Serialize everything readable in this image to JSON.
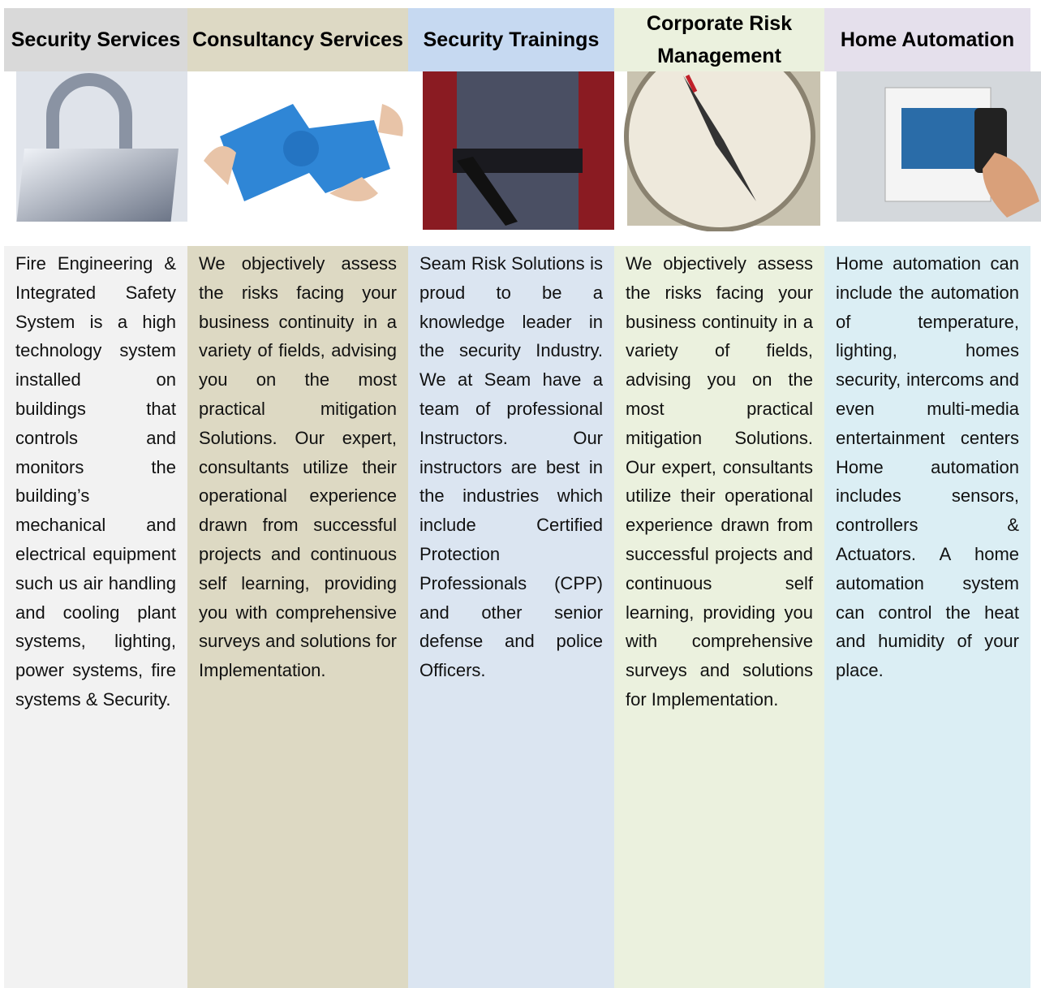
{
  "columns": [
    {
      "title": "Security Services",
      "text": "Fire Engineering & Integrated Safety System is a high technology system installed on buildings that controls and monitors the building’s mechanical and electrical equipment such us air handling and cooling plant systems, lighting, power systems, fire systems & Security."
    },
    {
      "title": "Consultancy Services",
      "text": "We objectively assess the risks facing your business continuity in a variety of fields, advising you on the most practical mitigation Solutions. Our expert, consultants utilize their operational experience drawn from successful projects and continuous self learning, providing you with comprehensive surveys and solutions for Implementation."
    },
    {
      "title": "Security Trainings",
      "text": "Seam Risk Solutions is proud to be a knowledge leader in the security Industry. We at Seam have a team of professional Instructors. Our instructors are best in the industries which include Certified Protection Professionals (CPP) and other senior defense and police Officers."
    },
    {
      "title": "Corporate Risk Management",
      "text": "We objectively assess the risks facing your business continuity in a variety of fields, advising you on the most practical mitigation Solutions. Our expert, consultants utilize their operational experience drawn from successful projects and continuous self learning, providing you with comprehensive surveys and solutions for Implementation."
    },
    {
      "title": "Home Automation",
      "text": "Home automation can include the automation of temperature, lighting, homes security, intercoms and even multi-media entertainment centers Home automation includes sensors, controllers & Actuators. A home automation system can control the heat and humidity of your place."
    }
  ]
}
